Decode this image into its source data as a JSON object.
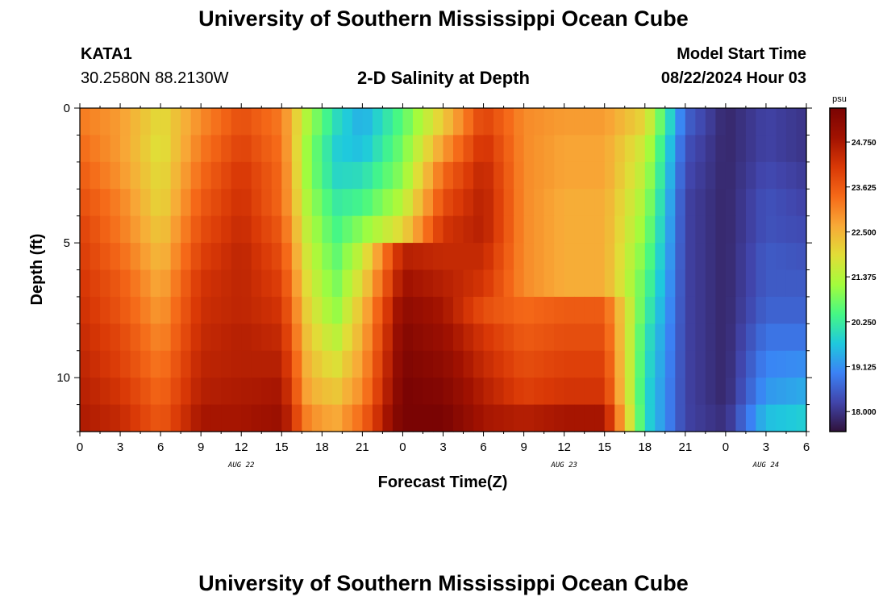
{
  "header": {
    "title": "University of Southern Mississippi Ocean Cube",
    "footer_title": "University of Southern Mississippi Ocean Cube",
    "station_id": "KATA1",
    "coordinates": "30.2580N  88.2130W",
    "plot_title": "2-D Salinity at Depth",
    "model_start_label": "Model Start Time",
    "model_start_value": "08/22/2024 Hour 03"
  },
  "chart_data": {
    "type": "heatmap",
    "title": "2-D Salinity at Depth",
    "xlabel": "Forecast Time(Z)",
    "ylabel": "Depth (ft)",
    "x_range_hours": [
      0,
      54
    ],
    "x_tick_labels": [
      "0",
      "3",
      "6",
      "9",
      "12",
      "15",
      "18",
      "21",
      "0",
      "3",
      "6",
      "9",
      "12",
      "15",
      "18",
      "21",
      "0",
      "3",
      "6"
    ],
    "date_labels": [
      {
        "text": "AUG 22",
        "hour": 12
      },
      {
        "text": "AUG 23",
        "hour": 36
      },
      {
        "text": "AUG 24",
        "hour": 51
      }
    ],
    "y_range_ft": [
      0,
      12
    ],
    "y_tick_labels": [
      {
        "value": 0,
        "label": "0"
      },
      {
        "value": 5,
        "label": "5"
      },
      {
        "value": 10,
        "label": "10"
      }
    ],
    "colorbar": {
      "unit": "psu",
      "min": 17.5,
      "max": 25.6,
      "ticks": [
        {
          "value": 18.0,
          "label": "18.000"
        },
        {
          "value": 19.125,
          "label": "19.125"
        },
        {
          "value": 20.25,
          "label": "20.250"
        },
        {
          "value": 21.375,
          "label": "21.375"
        },
        {
          "value": 22.5,
          "label": "22.500"
        },
        {
          "value": 23.625,
          "label": "23.625"
        },
        {
          "value": 24.75,
          "label": "24.750"
        }
      ],
      "colors": [
        "#30123b",
        "#4145ab",
        "#3b82f5",
        "#1fc9dd",
        "#46f884",
        "#a4fc3c",
        "#e1dd37",
        "#f8a937",
        "#f56918",
        "#d93806",
        "#a11201",
        "#7a0403"
      ]
    },
    "depth_levels_ft": [
      0.5,
      1.5,
      2.5,
      3.5,
      4.5,
      5.5,
      6.5,
      7.5,
      8.5,
      9.5,
      10.5,
      11.5
    ],
    "time_hours": [
      0,
      3,
      6,
      9,
      12,
      15,
      17,
      19,
      21,
      24,
      27,
      30,
      33,
      36,
      39,
      42,
      45,
      48,
      51,
      54
    ],
    "salinity_psu": [
      [
        23.2,
        22.8,
        21.9,
        23.0,
        23.8,
        23.2,
        21.2,
        20.0,
        19.4,
        20.6,
        22.2,
        24.0,
        23.0,
        22.8,
        22.8,
        22.0,
        18.6,
        17.8,
        18.2,
        18.0
      ],
      [
        23.4,
        22.8,
        21.8,
        23.2,
        24.0,
        23.3,
        21.0,
        19.8,
        19.6,
        20.8,
        22.8,
        24.3,
        23.0,
        22.7,
        22.7,
        21.6,
        18.4,
        17.8,
        18.2,
        18.0
      ],
      [
        23.6,
        22.9,
        21.9,
        23.4,
        24.2,
        23.4,
        21.0,
        19.9,
        20.0,
        21.0,
        23.4,
        24.5,
        23.0,
        22.7,
        22.7,
        21.4,
        18.3,
        17.8,
        18.3,
        18.1
      ],
      [
        23.8,
        23.1,
        22.0,
        23.6,
        24.3,
        23.4,
        21.2,
        20.2,
        20.4,
        21.4,
        23.8,
        24.6,
        23.0,
        22.6,
        22.6,
        21.2,
        18.2,
        17.8,
        18.4,
        18.2
      ],
      [
        24.0,
        23.2,
        22.2,
        23.8,
        24.4,
        23.6,
        21.4,
        20.4,
        21.0,
        22.0,
        24.2,
        24.6,
        23.0,
        22.6,
        22.6,
        21.0,
        18.2,
        17.8,
        18.4,
        18.3
      ],
      [
        24.1,
        23.4,
        22.4,
        24.0,
        24.5,
        23.8,
        21.6,
        20.6,
        21.6,
        24.6,
        24.4,
        24.4,
        23.0,
        22.6,
        22.6,
        20.8,
        18.2,
        17.8,
        18.5,
        18.4
      ],
      [
        24.2,
        23.6,
        22.6,
        24.2,
        24.5,
        24.0,
        21.8,
        20.8,
        22.0,
        24.9,
        24.6,
        24.2,
        23.0,
        22.6,
        22.6,
        20.6,
        18.2,
        17.8,
        18.5,
        18.5
      ],
      [
        24.3,
        23.7,
        22.8,
        24.3,
        24.5,
        24.2,
        22.0,
        21.0,
        22.4,
        25.2,
        24.8,
        23.8,
        23.4,
        23.6,
        23.6,
        20.4,
        18.2,
        17.8,
        18.6,
        18.6
      ],
      [
        24.4,
        23.9,
        23.0,
        24.4,
        24.6,
        24.4,
        22.2,
        21.4,
        22.6,
        25.4,
        25.0,
        24.2,
        23.6,
        23.8,
        23.8,
        20.2,
        18.2,
        17.8,
        18.8,
        18.8
      ],
      [
        24.5,
        24.0,
        23.2,
        24.5,
        24.6,
        24.6,
        22.4,
        21.8,
        22.8,
        25.5,
        25.2,
        24.4,
        23.8,
        24.0,
        24.0,
        20.1,
        18.2,
        17.8,
        19.0,
        19.1
      ],
      [
        24.6,
        24.2,
        23.4,
        24.6,
        24.7,
        24.8,
        22.6,
        22.2,
        23.0,
        25.6,
        25.4,
        24.6,
        24.0,
        24.2,
        24.2,
        20.0,
        18.2,
        17.8,
        19.2,
        19.4
      ],
      [
        24.7,
        24.4,
        23.6,
        24.8,
        24.8,
        25.0,
        23.0,
        22.6,
        23.4,
        25.7,
        25.6,
        24.8,
        24.6,
        24.8,
        24.8,
        20.0,
        18.2,
        17.9,
        19.6,
        19.8
      ]
    ]
  }
}
